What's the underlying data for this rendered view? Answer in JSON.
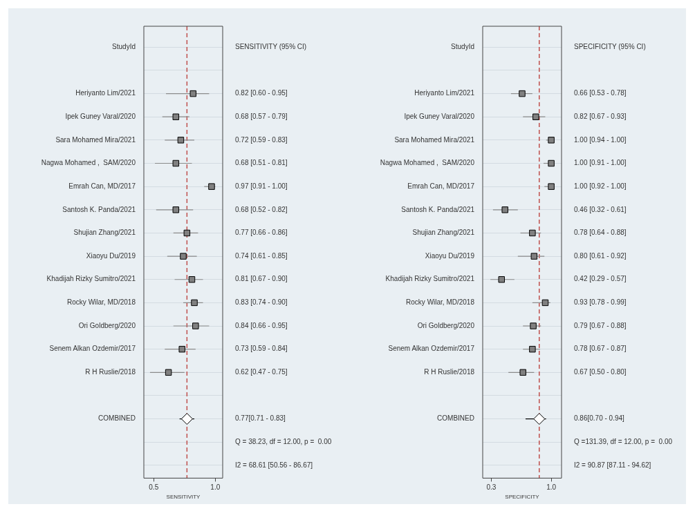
{
  "chart_data": [
    {
      "type": "scatter",
      "orientation": "horizontal",
      "ylabel": "StudyId",
      "xlabel": "SENSITIVITY",
      "categories": [
        "Heriyanto Lim/2021",
        "Ipek Guney Varal/2020",
        "Sara Mohamed Mira/2021",
        "Nagwa Mohamed ,  SAM/2020",
        "Emrah Can, MD/2017",
        "Santosh K. Panda/2021",
        "Shujian Zhang/2021",
        "Xiaoyu Du/2019",
        "Khadijah Rizky Sumitro/2021",
        "Rocky Wilar, MD/2018",
        "Ori Goldberg/2020",
        "Senem Alkan Ozdemir/2017",
        "R H Ruslie/2018",
        null,
        "COMBINED"
      ],
      "series": [
        {
          "color": "#808080",
          "marker": "square",
          "values": [
            0.82,
            0.68,
            0.72,
            0.68,
            0.97,
            0.68,
            0.77,
            0.74,
            0.81,
            0.83,
            0.84,
            0.73,
            0.62,
            null,
            null
          ],
          "errors": [
            [
              0.6,
              0.95
            ],
            [
              0.57,
              0.79
            ],
            [
              0.59,
              0.83
            ],
            [
              0.51,
              0.81
            ],
            [
              0.91,
              1.0
            ],
            [
              0.52,
              0.82
            ],
            [
              0.66,
              0.86
            ],
            [
              0.61,
              0.85
            ],
            [
              0.67,
              0.9
            ],
            [
              0.74,
              0.9
            ],
            [
              0.66,
              0.95
            ],
            [
              0.59,
              0.84
            ],
            [
              0.47,
              0.75
            ],
            null,
            null
          ],
          "value_labels": [
            "0.82 [0.60 - 0.95]",
            "0.68 [0.57 - 0.79]",
            "0.72 [0.59 - 0.83]",
            "0.68 [0.51 - 0.81]",
            "0.97 [0.91 - 1.00]",
            "0.68 [0.52 - 0.82]",
            "0.77 [0.66 - 0.86]",
            "0.74 [0.61 - 0.85]",
            "0.81 [0.67 - 0.90]",
            "0.83 [0.74 - 0.90]",
            "0.84 [0.66 - 0.95]",
            "0.73 [0.59 - 0.84]",
            "0.62 [0.47 - 0.75]",
            null,
            null
          ]
        },
        {
          "color": "#000000",
          "marker": "diamond",
          "values": [
            null,
            null,
            null,
            null,
            null,
            null,
            null,
            null,
            null,
            null,
            null,
            null,
            null,
            null,
            0.77
          ],
          "errors": [
            null,
            null,
            null,
            null,
            null,
            null,
            null,
            null,
            null,
            null,
            null,
            null,
            null,
            null,
            [
              0.71,
              0.83
            ]
          ]
        }
      ],
      "xlim": [
        0.42,
        1.06
      ],
      "xticks": [
        {
          "value": 0.5,
          "label": "0.5"
        },
        {
          "value": 1.0,
          "label": "1.0"
        }
      ],
      "ref_lines": [
        {
          "axis": "x",
          "value": 0.77,
          "color": "#c0504d",
          "line_style": "dashed"
        }
      ],
      "annotations": [
        "SENSITIVITY (95% CI)",
        "0.77[0.71 - 0.83]",
        "Q = 38.23, df = 12.00, p =  0.00",
        "I2 = 68.61 [50.56 - 86.67]"
      ],
      "grid": "y",
      "legend": false
    },
    {
      "type": "scatter",
      "orientation": "horizontal",
      "ylabel": "StudyId",
      "xlabel": "SPECIFICITY",
      "categories": [
        "Heriyanto Lim/2021",
        "Ipek Guney Varal/2020",
        "Sara Mohamed Mira/2021",
        "Nagwa Mohamed ,  SAM/2020",
        "Emrah Can, MD/2017",
        "Santosh K. Panda/2021",
        "Shujian Zhang/2021",
        "Xiaoyu Du/2019",
        "Khadijah Rizky Sumitro/2021",
        "Rocky Wilar, MD/2018",
        "Ori Goldberg/2020",
        "Senem Alkan Ozdemir/2017",
        "R H Ruslie/2018",
        null,
        "COMBINED"
      ],
      "series": [
        {
          "color": "#808080",
          "marker": "square",
          "values": [
            0.66,
            0.82,
            1.0,
            1.0,
            1.0,
            0.46,
            0.78,
            0.8,
            0.42,
            0.93,
            0.79,
            0.78,
            0.67,
            null,
            null
          ],
          "errors": [
            [
              0.53,
              0.78
            ],
            [
              0.67,
              0.93
            ],
            [
              0.94,
              1.0
            ],
            [
              0.91,
              1.0
            ],
            [
              0.92,
              1.0
            ],
            [
              0.32,
              0.61
            ],
            [
              0.64,
              0.88
            ],
            [
              0.61,
              0.92
            ],
            [
              0.29,
              0.57
            ],
            [
              0.78,
              0.99
            ],
            [
              0.67,
              0.88
            ],
            [
              0.67,
              0.87
            ],
            [
              0.5,
              0.8
            ],
            null,
            null
          ],
          "value_labels": [
            "0.66 [0.53 - 0.78]",
            "0.82 [0.67 - 0.93]",
            "1.00 [0.94 - 1.00]",
            "1.00 [0.91 - 1.00]",
            "1.00 [0.92 - 1.00]",
            "0.46 [0.32 - 0.61]",
            "0.78 [0.64 - 0.88]",
            "0.80 [0.61 - 0.92]",
            "0.42 [0.29 - 0.57]",
            "0.93 [0.78 - 0.99]",
            "0.79 [0.67 - 0.88]",
            "0.78 [0.67 - 0.87]",
            "0.67 [0.50 - 0.80]",
            null,
            null
          ]
        },
        {
          "color": "#000000",
          "marker": "diamond",
          "values": [
            null,
            null,
            null,
            null,
            null,
            null,
            null,
            null,
            null,
            null,
            null,
            null,
            null,
            null,
            0.86
          ],
          "errors": [
            null,
            null,
            null,
            null,
            null,
            null,
            null,
            null,
            null,
            null,
            null,
            null,
            null,
            null,
            [
              0.7,
              0.94
            ]
          ]
        }
      ],
      "xlim": [
        0.2,
        1.12
      ],
      "xticks": [
        {
          "value": 0.3,
          "label": "0.3"
        },
        {
          "value": 1.0,
          "label": "1.0"
        }
      ],
      "ref_lines": [
        {
          "axis": "x",
          "value": 0.86,
          "color": "#c0504d",
          "line_style": "dashed"
        }
      ],
      "annotations": [
        "SPECIFICITY (95% CI)",
        "0.86[0.70 - 0.94]",
        "Q =131.39, df = 12.00, p =  0.00",
        "I2 = 90.87 [87.11 - 94.62]"
      ],
      "grid": "y",
      "legend": false
    }
  ]
}
